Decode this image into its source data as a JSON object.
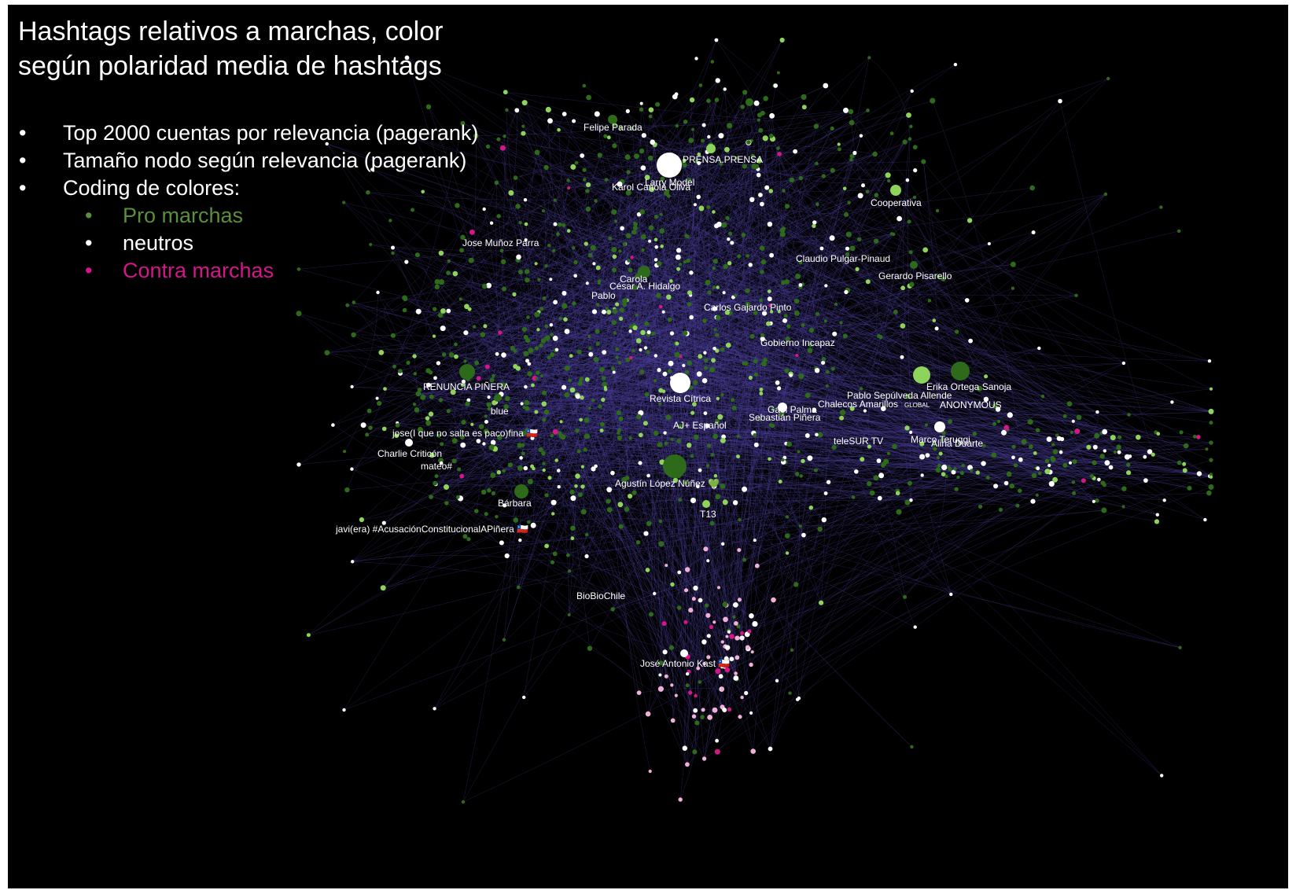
{
  "title": "Hashtags relativos a marchas, color según polaridad media de hashtags",
  "bullets": [
    "Top 2000 cuentas por relevancia (pagerank)",
    "Tamaño nodo según relevancia (pagerank)",
    "Coding de colores:"
  ],
  "legend": [
    {
      "label": "Pro marchas",
      "color": "#5c8f3a"
    },
    {
      "label": "neutros",
      "color": "#ffffff"
    },
    {
      "label": "Contra marchas",
      "color": "#d4168a"
    }
  ],
  "colors": {
    "background": "#000000",
    "edge": "#4a3f9a",
    "pro_dark": "#2d6b1a",
    "pro_light": "#8fd45a",
    "neutral": "#ffffff",
    "contra": "#d4168a",
    "contra_light": "#f0b0d8"
  },
  "node_labels": [
    "Felipe Parada",
    "PRENSA.PRENSA",
    "Larry Model",
    "Karol Cariola Oliva",
    "Cooperativa",
    "Jose Muñoz Parra",
    "Claudio Pulgar-Pinaud",
    "Gerardo Pisarello",
    "Carola",
    "César A. Hidalgo",
    "Pablo",
    "Carlos Gajardo Pinto",
    "Gobierno Incapaz",
    "Erika Ortega Sanoja",
    "RENUNCIA PIÑERA",
    "Revista Cítrica",
    "Pablo Sepúlveda Allende",
    "Chalecos Amarillos",
    "GLOBAL",
    "ANONYMOUS",
    "blue",
    "Gael Palma",
    "Sebastián Piñera",
    "AJ+ Español",
    "jose(I que no salta es paco)fina 🇨🇱",
    "teleSUR TV",
    "Marco Teruggi",
    "Alina Duarte",
    "Charlie Criticón",
    "mateo#",
    "Agustín López Núñez 💚",
    "Bárbara",
    "T13",
    "javi(era) #AcusaciónConstitucionalAPiñera 🇨🇱",
    "BioBioChile",
    "José Antonio Kast 🇨🇱"
  ]
}
